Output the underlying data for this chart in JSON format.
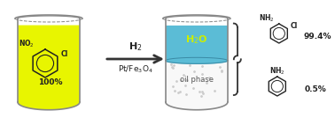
{
  "bg_color": "#ffffff",
  "beaker1_fill_color": "#e8f500",
  "beaker2_water_color": "#5bbcd6",
  "beaker2_water_label_color": "#ccee00",
  "beaker_outline_color": "#888888",
  "arrow_color": "#333333",
  "h2_label": "H$_2$",
  "catalyst_label": "Pt/Fe$_3$O$_4$",
  "water_label": "H$_2$O",
  "oil_label": "oil phase",
  "pct1": "99.4%",
  "pct2": "0.5%",
  "no2_label": "NO$_2$",
  "cl_label1": "Cl",
  "pct_start": "100%",
  "nh2_label": "NH$_2$",
  "cl_label2": "Cl"
}
